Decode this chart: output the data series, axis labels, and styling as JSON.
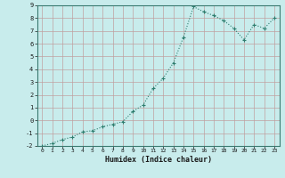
{
  "x": [
    0,
    1,
    2,
    3,
    4,
    5,
    6,
    7,
    8,
    9,
    10,
    11,
    12,
    13,
    14,
    15,
    16,
    17,
    18,
    19,
    20,
    21,
    22,
    23
  ],
  "y": [
    -2.0,
    -1.8,
    -1.5,
    -1.3,
    -0.9,
    -0.8,
    -0.5,
    -0.3,
    -0.1,
    0.7,
    1.2,
    2.5,
    3.3,
    4.5,
    6.5,
    8.9,
    8.5,
    8.2,
    7.8,
    7.2,
    6.3,
    7.5,
    7.2,
    8.0
  ],
  "xlabel": "Humidex (Indice chaleur)",
  "ylim": [
    -2,
    9
  ],
  "xlim": [
    -0.5,
    23.5
  ],
  "yticks": [
    -2,
    -1,
    0,
    1,
    2,
    3,
    4,
    5,
    6,
    7,
    8,
    9
  ],
  "xticks": [
    0,
    1,
    2,
    3,
    4,
    5,
    6,
    7,
    8,
    9,
    10,
    11,
    12,
    13,
    14,
    15,
    16,
    17,
    18,
    19,
    20,
    21,
    22,
    23
  ],
  "line_color": "#2e7d6e",
  "bg_color": "#c8ecec",
  "grid_color_h": "#c0a0a0",
  "grid_color_v": "#c0a0a0",
  "marker": "+",
  "linewidth": 0.8,
  "markersize": 3.5
}
